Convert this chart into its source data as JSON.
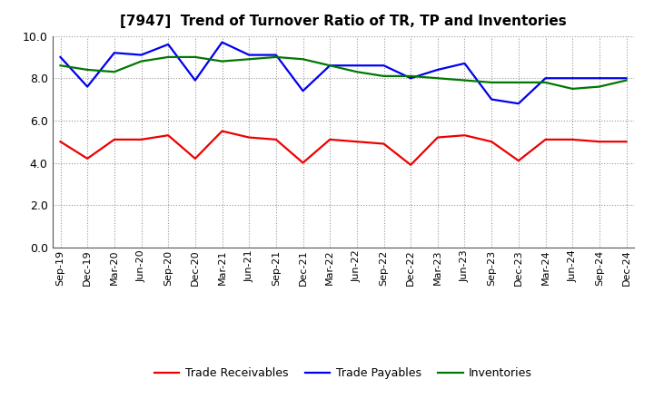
{
  "title": "[7947]  Trend of Turnover Ratio of TR, TP and Inventories",
  "xlabels": [
    "Sep-19",
    "Dec-19",
    "Mar-20",
    "Jun-20",
    "Sep-20",
    "Dec-20",
    "Mar-21",
    "Jun-21",
    "Sep-21",
    "Dec-21",
    "Mar-22",
    "Jun-22",
    "Sep-22",
    "Dec-22",
    "Mar-23",
    "Jun-23",
    "Sep-23",
    "Dec-23",
    "Mar-24",
    "Jun-24",
    "Sep-24",
    "Dec-24"
  ],
  "trade_receivables": [
    5.0,
    4.2,
    5.1,
    5.1,
    5.3,
    4.2,
    5.5,
    5.2,
    5.1,
    4.0,
    5.1,
    5.0,
    4.9,
    3.9,
    5.2,
    5.3,
    5.0,
    4.1,
    5.1,
    5.1,
    5.0,
    5.0
  ],
  "trade_payables": [
    9.0,
    7.6,
    9.2,
    9.1,
    9.6,
    7.9,
    9.7,
    9.1,
    9.1,
    7.4,
    8.6,
    8.6,
    8.6,
    8.0,
    8.4,
    8.7,
    7.0,
    6.8,
    8.0,
    8.0,
    8.0,
    8.0
  ],
  "inventories": [
    8.6,
    8.4,
    8.3,
    8.8,
    9.0,
    9.0,
    8.8,
    8.9,
    9.0,
    8.9,
    8.6,
    8.3,
    8.1,
    8.1,
    8.0,
    7.9,
    7.8,
    7.8,
    7.8,
    7.5,
    7.6,
    7.9
  ],
  "ylim": [
    0.0,
    10.0
  ],
  "yticks": [
    0.0,
    2.0,
    4.0,
    6.0,
    8.0,
    10.0
  ],
  "tr_color": "#ee0000",
  "tp_color": "#0000ee",
  "inv_color": "#007700",
  "line_width": 1.6,
  "legend_labels": [
    "Trade Receivables",
    "Trade Payables",
    "Inventories"
  ],
  "background_color": "#ffffff",
  "grid_color": "#999999",
  "title_fontsize": 11,
  "tick_fontsize": 8,
  "ytick_fontsize": 9
}
